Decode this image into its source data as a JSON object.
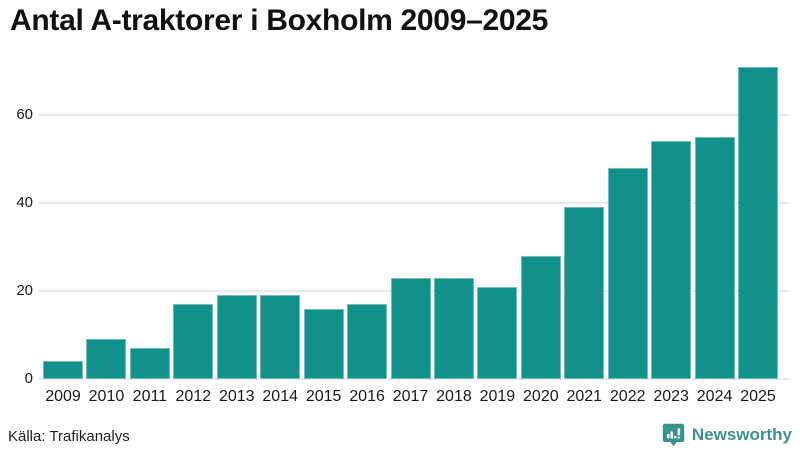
{
  "title": "Antal A-traktorer i Boxholm 2009–2025",
  "source": "Källa: Trafikanalys",
  "branding": {
    "name": "Newsworthy",
    "logo_icon": "bar-chart-speech-bubble-icon"
  },
  "colors": {
    "bar": "#12918a",
    "grid": "#e9e9f0",
    "text": "#1a1a1a",
    "brand": "#3d918b",
    "background": "#ffffff"
  },
  "chart_data": {
    "type": "bar",
    "title": "Antal A-traktorer i Boxholm 2009–2025",
    "categories": [
      "2009",
      "2010",
      "2011",
      "2012",
      "2013",
      "2014",
      "2015",
      "2016",
      "2017",
      "2018",
      "2019",
      "2020",
      "2021",
      "2022",
      "2023",
      "2024",
      "2025"
    ],
    "values": [
      4,
      9,
      7,
      17,
      19,
      19,
      16,
      17,
      23,
      23,
      21,
      28,
      39,
      48,
      54,
      55,
      71
    ],
    "xlabel": "",
    "ylabel": "",
    "ylim": [
      0,
      72.5
    ],
    "yticks": [
      0,
      20,
      40,
      60
    ],
    "grid": true,
    "legend": false,
    "bar_color": "#12918a",
    "source": "Källa: Trafikanalys"
  }
}
